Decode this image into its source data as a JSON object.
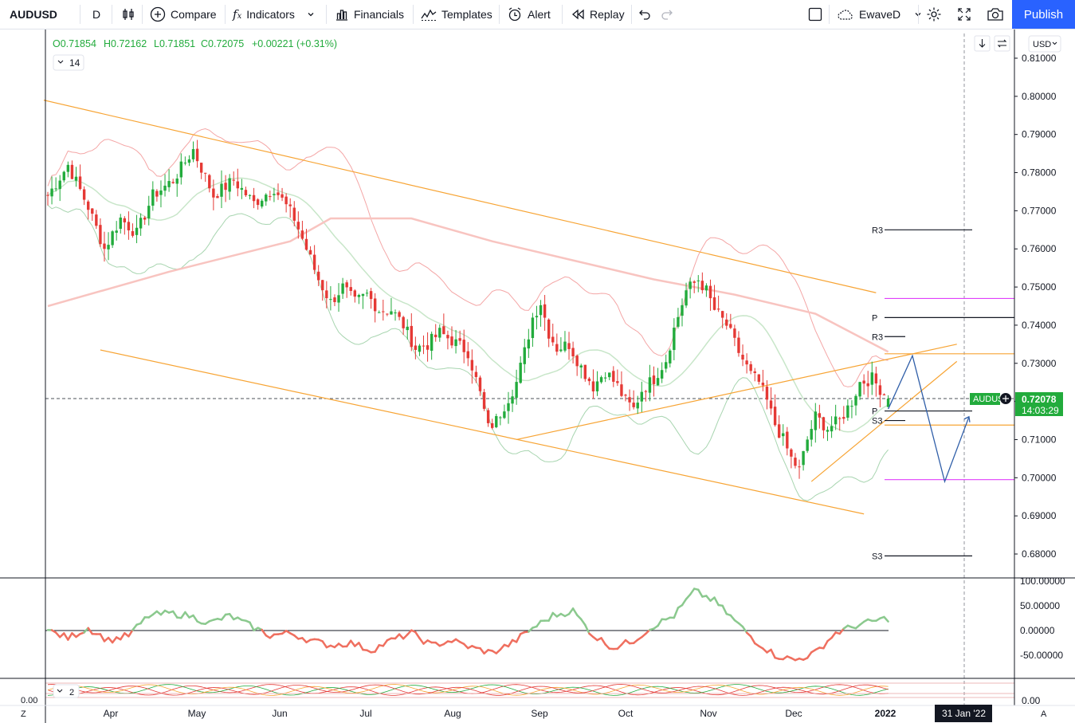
{
  "toolbar": {
    "symbol": "AUDUSD",
    "interval": "D",
    "compare": "Compare",
    "indicators": "Indicators",
    "financials": "Financials",
    "templates": "Templates",
    "alert": "Alert",
    "replay": "Replay",
    "layout_name": "EwaveD",
    "publish": "Publish"
  },
  "legend": {
    "open": "O0.71854",
    "high": "H0.72162",
    "low": "L0.71851",
    "close": "C0.72075",
    "change": "+0.00221 (+0.31%)",
    "indicator_param": "14",
    "sub_indicator_param": "2",
    "currency": "USD"
  },
  "colors": {
    "up": "#22ab3c",
    "down": "#e53935",
    "trendline": "#f7a434",
    "magenta": "#e040fb",
    "projection": "#2f5ea8",
    "accent": "#2962ff"
  },
  "price_label": {
    "symbol": "AUDUSD",
    "price": "0.72078",
    "countdown": "14:03:29"
  },
  "crosshair_date": "31 Jan '22",
  "pivot_labels": [
    "R3",
    "P",
    "R3",
    "P",
    "S3",
    "S3"
  ],
  "chart_data": {
    "type": "candlestick",
    "title": "",
    "xlabel": "",
    "ylabel": "",
    "ylim": [
      0.6755,
      0.811
    ],
    "price_ticks": [
      "0.81000",
      "0.80000",
      "0.79000",
      "0.78000",
      "0.77000",
      "0.76000",
      "0.75000",
      "0.74000",
      "0.73000",
      "0.72000",
      "0.71000",
      "0.70000",
      "0.69000",
      "0.68000"
    ],
    "month_ticks": [
      "Apr",
      "May",
      "Jun",
      "Jul",
      "Aug",
      "Sep",
      "Oct",
      "Nov",
      "Dec",
      "2022"
    ],
    "osc_ticks": [
      "100.00000",
      "50.00000",
      "0.00000",
      "-50.00000"
    ],
    "sub_ticks": [
      "0.00"
    ],
    "sub_left_label": "0.00",
    "last_close": 0.72075,
    "close_path": [
      [
        0,
        0.774
      ],
      [
        5,
        0.782
      ],
      [
        10,
        0.771
      ],
      [
        14,
        0.76
      ],
      [
        18,
        0.768
      ],
      [
        22,
        0.764
      ],
      [
        26,
        0.774
      ],
      [
        31,
        0.778
      ],
      [
        36,
        0.786
      ],
      [
        41,
        0.774
      ],
      [
        46,
        0.778
      ],
      [
        51,
        0.772
      ],
      [
        56,
        0.776
      ],
      [
        61,
        0.768
      ],
      [
        64,
        0.76
      ],
      [
        67,
        0.752
      ],
      [
        70,
        0.746
      ],
      [
        73,
        0.75
      ],
      [
        76,
        0.746
      ],
      [
        79,
        0.748
      ],
      [
        82,
        0.744
      ],
      [
        85,
        0.744
      ],
      [
        88,
        0.74
      ],
      [
        91,
        0.734
      ],
      [
        94,
        0.735
      ],
      [
        97,
        0.738
      ],
      [
        100,
        0.736
      ],
      [
        104,
        0.733
      ],
      [
        107,
        0.722
      ],
      [
        109,
        0.713
      ],
      [
        111,
        0.715
      ],
      [
        113,
        0.719
      ],
      [
        116,
        0.725
      ],
      [
        118,
        0.733
      ],
      [
        120,
        0.742
      ],
      [
        122,
        0.746
      ],
      [
        124,
        0.738
      ],
      [
        126,
        0.734
      ],
      [
        129,
        0.735
      ],
      [
        132,
        0.729
      ],
      [
        135,
        0.724
      ],
      [
        138,
        0.728
      ],
      [
        141,
        0.724
      ],
      [
        143,
        0.72
      ],
      [
        145,
        0.718
      ],
      [
        147,
        0.723
      ],
      [
        150,
        0.726
      ],
      [
        153,
        0.731
      ],
      [
        155,
        0.739
      ],
      [
        158,
        0.749
      ],
      [
        161,
        0.752
      ],
      [
        163,
        0.749
      ],
      [
        165,
        0.744
      ],
      [
        168,
        0.74
      ],
      [
        171,
        0.733
      ],
      [
        174,
        0.727
      ],
      [
        176,
        0.725
      ],
      [
        178,
        0.72
      ],
      [
        180,
        0.714
      ],
      [
        182,
        0.71
      ],
      [
        184,
        0.705
      ],
      [
        186,
        0.702
      ],
      [
        188,
        0.71
      ],
      [
        190,
        0.716
      ],
      [
        193,
        0.713
      ],
      [
        196,
        0.715
      ],
      [
        199,
        0.72
      ],
      [
        201,
        0.725
      ],
      [
        204,
        0.726
      ],
      [
        207,
        0.722
      ],
      [
        208,
        0.72075
      ]
    ],
    "sma_long": [
      [
        0,
        0.745
      ],
      [
        30,
        0.754
      ],
      [
        60,
        0.762
      ],
      [
        70,
        0.768
      ],
      [
        90,
        0.768
      ],
      [
        110,
        0.762
      ],
      [
        130,
        0.757
      ],
      [
        150,
        0.752
      ],
      [
        170,
        0.748
      ],
      [
        190,
        0.743
      ],
      [
        208,
        0.733
      ]
    ],
    "oscillator": [
      [
        0,
        0
      ],
      [
        5,
        -15
      ],
      [
        10,
        5
      ],
      [
        15,
        -20
      ],
      [
        20,
        -10
      ],
      [
        25,
        30
      ],
      [
        30,
        35
      ],
      [
        35,
        30
      ],
      [
        40,
        15
      ],
      [
        45,
        30
      ],
      [
        50,
        10
      ],
      [
        55,
        -10
      ],
      [
        60,
        -5
      ],
      [
        65,
        -20
      ],
      [
        70,
        -30
      ],
      [
        75,
        -25
      ],
      [
        80,
        -40
      ],
      [
        85,
        -20
      ],
      [
        90,
        -5
      ],
      [
        95,
        -30
      ],
      [
        100,
        -20
      ],
      [
        105,
        -35
      ],
      [
        110,
        -45
      ],
      [
        115,
        -25
      ],
      [
        120,
        5
      ],
      [
        125,
        30
      ],
      [
        130,
        40
      ],
      [
        135,
        -10
      ],
      [
        140,
        -35
      ],
      [
        145,
        -20
      ],
      [
        150,
        10
      ],
      [
        155,
        30
      ],
      [
        160,
        80
      ],
      [
        165,
        60
      ],
      [
        170,
        20
      ],
      [
        175,
        -20
      ],
      [
        180,
        -50
      ],
      [
        185,
        -60
      ],
      [
        190,
        -45
      ],
      [
        195,
        -5
      ],
      [
        200,
        10
      ],
      [
        205,
        20
      ],
      [
        208,
        25
      ]
    ],
    "channel": {
      "upper": [
        [
          -1,
          0.799
        ],
        [
          205,
          0.7485
        ]
      ],
      "lower": [
        [
          13,
          0.7335
        ],
        [
          202,
          0.6905
        ]
      ],
      "rising_a": [
        [
          116,
          0.71
        ],
        [
          225,
          0.735
        ]
      ],
      "rising_b": [
        [
          189,
          0.699
        ],
        [
          225,
          0.7305
        ]
      ]
    },
    "levels": {
      "magenta_high": 0.747,
      "magenta_low": 0.6995,
      "orange_1": 0.7325,
      "orange_2": 0.7138,
      "pivot_R3_outer": 0.765,
      "pivot_P_outer": 0.742,
      "pivot_R3_inner": 0.737,
      "pivot_P_inner": 0.7175,
      "pivot_S3_inner": 0.715,
      "pivot_S3_outer": 0.6795
    },
    "projection": [
      [
        208,
        0.718
      ],
      [
        214,
        0.732
      ],
      [
        222,
        0.699
      ],
      [
        228,
        0.716
      ]
    ]
  }
}
